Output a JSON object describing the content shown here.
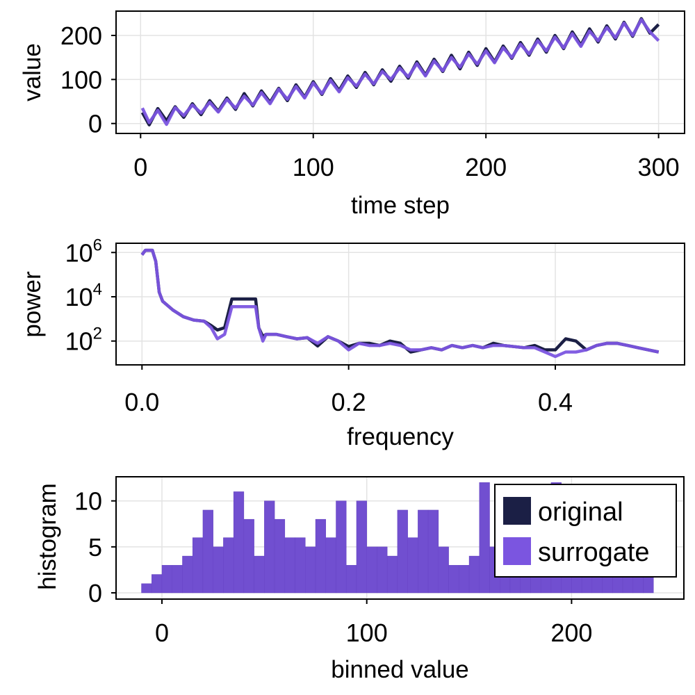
{
  "colors": {
    "original": "#1b1f45",
    "surrogate": "#7b55e0",
    "grid": "#e3e3e3"
  },
  "chart_data": [
    {
      "type": "line",
      "xlabel": "time step",
      "ylabel": "value",
      "xlim": [
        -5,
        310
      ],
      "ylim": [
        -20,
        260
      ],
      "xticks": [
        0,
        100,
        200,
        300
      ],
      "yticks": [
        0,
        100,
        200
      ],
      "grid": true,
      "x": [
        1,
        5,
        10,
        15,
        20,
        25,
        30,
        35,
        40,
        45,
        50,
        55,
        60,
        65,
        70,
        75,
        80,
        85,
        90,
        95,
        100,
        105,
        110,
        115,
        120,
        125,
        130,
        135,
        140,
        145,
        150,
        155,
        160,
        165,
        170,
        175,
        180,
        185,
        190,
        195,
        200,
        205,
        210,
        215,
        220,
        225,
        230,
        235,
        240,
        245,
        250,
        255,
        260,
        265,
        270,
        275,
        280,
        285,
        290,
        295,
        300
      ],
      "series": [
        {
          "name": "original",
          "values": [
            25,
            -3,
            34,
            6,
            38,
            14,
            45,
            20,
            52,
            28,
            58,
            32,
            68,
            40,
            74,
            48,
            80,
            52,
            88,
            60,
            95,
            66,
            102,
            75,
            108,
            82,
            116,
            88,
            122,
            96,
            130,
            103,
            140,
            110,
            146,
            118,
            155,
            124,
            162,
            132,
            170,
            140,
            176,
            148,
            184,
            155,
            192,
            162,
            200,
            170,
            208,
            178,
            215,
            185,
            222,
            192,
            230,
            198,
            238,
            205,
            225
          ]
        },
        {
          "name": "surrogate",
          "values": [
            35,
            2,
            30,
            -2,
            36,
            18,
            42,
            24,
            48,
            26,
            55,
            35,
            62,
            42,
            70,
            45,
            78,
            55,
            84,
            58,
            92,
            68,
            98,
            72,
            104,
            85,
            112,
            90,
            118,
            100,
            126,
            106,
            136,
            108,
            142,
            120,
            150,
            128,
            158,
            135,
            165,
            138,
            172,
            150,
            180,
            158,
            188,
            165,
            196,
            172,
            204,
            175,
            210,
            188,
            218,
            195,
            228,
            200,
            236,
            208,
            188
          ]
        }
      ]
    },
    {
      "type": "line",
      "xlabel": "frequency",
      "ylabel": "power",
      "yscale": "log",
      "xlim": [
        -0.025,
        0.525
      ],
      "xticks": [
        0.0,
        0.2,
        0.4
      ],
      "xtick_labels": [
        "0.0",
        "0.2",
        "0.4"
      ],
      "yticks": [
        100,
        10000,
        1000000
      ],
      "ytick_labels": [
        {
          "base": "10",
          "exp": "2"
        },
        {
          "base": "10",
          "exp": "4"
        },
        {
          "base": "10",
          "exp": "6"
        }
      ],
      "grid": true,
      "x": [
        0,
        0.0033,
        0.0067,
        0.01,
        0.0133,
        0.0167,
        0.02,
        0.03,
        0.04,
        0.05,
        0.06,
        0.067,
        0.073,
        0.08,
        0.087,
        0.09,
        0.1,
        0.11,
        0.113,
        0.117,
        0.12,
        0.13,
        0.14,
        0.15,
        0.16,
        0.17,
        0.18,
        0.19,
        0.2,
        0.21,
        0.22,
        0.23,
        0.24,
        0.25,
        0.26,
        0.27,
        0.28,
        0.29,
        0.3,
        0.31,
        0.32,
        0.33,
        0.34,
        0.35,
        0.36,
        0.37,
        0.38,
        0.39,
        0.4,
        0.41,
        0.42,
        0.43,
        0.44,
        0.45,
        0.46,
        0.47,
        0.48,
        0.49,
        0.5
      ],
      "series": [
        {
          "name": "original",
          "values": [
            790000,
            1260000,
            1260000,
            1260000,
            400000,
            16000,
            6300,
            2500,
            1260,
            890,
            790,
            500,
            316,
            400,
            7900,
            7900,
            7900,
            7900,
            400,
            158,
            200,
            200,
            158,
            126,
            141,
            60,
            158,
            100,
            56,
            79,
            79,
            63,
            100,
            79,
            32,
            40,
            50,
            40,
            63,
            50,
            63,
            50,
            79,
            63,
            56,
            50,
            63,
            40,
            40,
            126,
            100,
            40,
            63,
            79,
            79,
            63,
            50,
            40,
            32
          ]
        },
        {
          "name": "surrogate",
          "values": [
            790000,
            1260000,
            1260000,
            1260000,
            400000,
            16000,
            6300,
            2500,
            1260,
            890,
            790,
            400,
            126,
            200,
            3550,
            3550,
            3550,
            3550,
            400,
            100,
            200,
            200,
            158,
            126,
            141,
            79,
            158,
            100,
            40,
            79,
            63,
            63,
            79,
            63,
            40,
            40,
            50,
            40,
            63,
            50,
            63,
            50,
            63,
            63,
            56,
            50,
            50,
            32,
            20,
            32,
            32,
            40,
            63,
            79,
            79,
            63,
            50,
            40,
            32
          ]
        }
      ]
    },
    {
      "type": "bar",
      "xlabel": "binned value",
      "ylabel": "histogram",
      "xlim": [
        -25,
        255
      ],
      "ylim": [
        -0.6,
        12.6
      ],
      "xticks": [
        0,
        100,
        200
      ],
      "yticks": [
        0,
        5,
        10
      ],
      "grid": true,
      "legend": {
        "position": "top-right",
        "entries": [
          "original",
          "surrogate"
        ]
      },
      "bin_edges_start": -10,
      "bin_width": 5,
      "series": [
        {
          "name": "original",
          "values": [
            1,
            2,
            3,
            3,
            4,
            6,
            9,
            5,
            6,
            11,
            8,
            4,
            10,
            8,
            6,
            6,
            5,
            8,
            6,
            10,
            3,
            10,
            5,
            5,
            4,
            9,
            6,
            9,
            9,
            5,
            3,
            3,
            4,
            12,
            5,
            7,
            6,
            4,
            6,
            5,
            12,
            6,
            5,
            7,
            4,
            5,
            6,
            5,
            4,
            5
          ]
        },
        {
          "name": "surrogate",
          "values": [
            1,
            2,
            3,
            3,
            4,
            6,
            9,
            5,
            6,
            11,
            8,
            4,
            10,
            8,
            6,
            6,
            5,
            8,
            6,
            10,
            3,
            10,
            5,
            5,
            4,
            9,
            6,
            9,
            9,
            5,
            3,
            3,
            4,
            12,
            5,
            7,
            6,
            4,
            6,
            5,
            12,
            6,
            5,
            7,
            4,
            5,
            6,
            5,
            4,
            5
          ]
        }
      ]
    }
  ]
}
